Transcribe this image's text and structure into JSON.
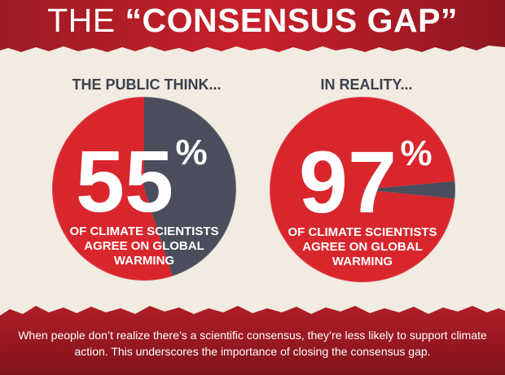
{
  "title": {
    "part1": "THE",
    "part2": "“CONSENSUS GAP”"
  },
  "colors": {
    "red": "#d9262d",
    "dark_red": "#8e1620",
    "slate": "#4a4d5c",
    "cream": "#f1ebe1",
    "white": "#ffffff"
  },
  "chart_data": [
    {
      "type": "pie",
      "heading": "THE PUBLIC THINK...",
      "big_number": "55",
      "percent_sign": "%",
      "caption_lines": [
        "OF CLIMATE SCIENTISTS",
        "AGREE ON GLOBAL",
        "WARMING"
      ],
      "slices": [
        {
          "value": 55,
          "color": "#d9262d"
        },
        {
          "value": 45,
          "color": "#4a4d5c"
        }
      ]
    },
    {
      "type": "pie",
      "heading": "IN REALITY...",
      "big_number": "97",
      "percent_sign": "%",
      "caption_lines": [
        "OF CLIMATE SCIENTISTS",
        "AGREE ON GLOBAL",
        "WARMING"
      ],
      "slices": [
        {
          "value": 97,
          "color": "#d9262d"
        },
        {
          "value": 3,
          "color": "#4a4d5c"
        }
      ]
    }
  ],
  "footer": "When people don’t realize there’s a scientific consensus, they’re less likely to support climate action. This underscores the importance of closing the consensus gap."
}
